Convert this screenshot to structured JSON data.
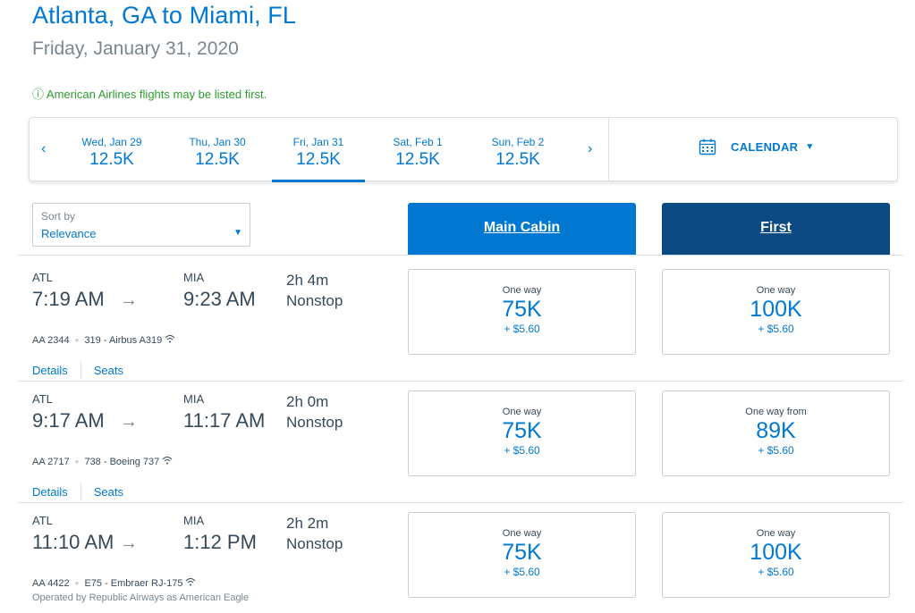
{
  "header": {
    "title": "Atlanta, GA to Miami, FL",
    "date": "Friday, January 31, 2020",
    "notice": "ⓘ American Airlines flights may be listed first."
  },
  "dates": {
    "prev_icon": "chevron-left-icon",
    "next_icon": "chevron-right-icon",
    "items": [
      {
        "label": "Wed, Jan 29",
        "price": "12.5K"
      },
      {
        "label": "Thu, Jan 30",
        "price": "12.5K"
      },
      {
        "label": "Fri, Jan 31",
        "price": "12.5K",
        "selected": true
      },
      {
        "label": "Sat, Feb 1",
        "price": "12.5K"
      },
      {
        "label": "Sun, Feb 2",
        "price": "12.5K"
      }
    ],
    "calendar_label": "CALENDAR",
    "calendar_icon": "calendar-icon"
  },
  "sort": {
    "label": "Sort by",
    "value": "Relevance"
  },
  "cabins": {
    "main": "Main Cabin",
    "first": "First"
  },
  "colors": {
    "accent": "#0078d2",
    "first_header": "#0b4a82",
    "notice": "#2e9b2e"
  },
  "flights": [
    {
      "origin": "ATL",
      "depart": "7:19 AM",
      "dest": "MIA",
      "arrive": "9:23 AM",
      "duration": "2h 4m",
      "stops": "Nonstop",
      "flight_no": "AA 2344",
      "aircraft": "319 - Airbus A319",
      "operated_by": "",
      "details_label": "Details",
      "seats_label": "Seats",
      "main": {
        "label": "One way",
        "points": "75K",
        "tax": "+ $5.60"
      },
      "first": {
        "label": "One way",
        "points": "100K",
        "tax": "+ $5.60"
      }
    },
    {
      "origin": "ATL",
      "depart": "9:17 AM",
      "dest": "MIA",
      "arrive": "11:17 AM",
      "duration": "2h 0m",
      "stops": "Nonstop",
      "flight_no": "AA 2717",
      "aircraft": "738 - Boeing 737",
      "operated_by": "",
      "details_label": "Details",
      "seats_label": "Seats",
      "main": {
        "label": "One way",
        "points": "75K",
        "tax": "+ $5.60"
      },
      "first": {
        "label": "One way from",
        "points": "89K",
        "tax": "+ $5.60"
      }
    },
    {
      "origin": "ATL",
      "depart": "11:10 AM",
      "dest": "MIA",
      "arrive": "1:12 PM",
      "duration": "2h 2m",
      "stops": "Nonstop",
      "flight_no": "AA 4422",
      "aircraft": "E75 - Embraer RJ-175",
      "operated_by": "Operated by Republic Airways as American Eagle",
      "details_label": "Details",
      "seats_label": "Seats",
      "main": {
        "label": "One way",
        "points": "75K",
        "tax": "+ $5.60"
      },
      "first": {
        "label": "One way",
        "points": "100K",
        "tax": "+ $5.60"
      }
    }
  ]
}
